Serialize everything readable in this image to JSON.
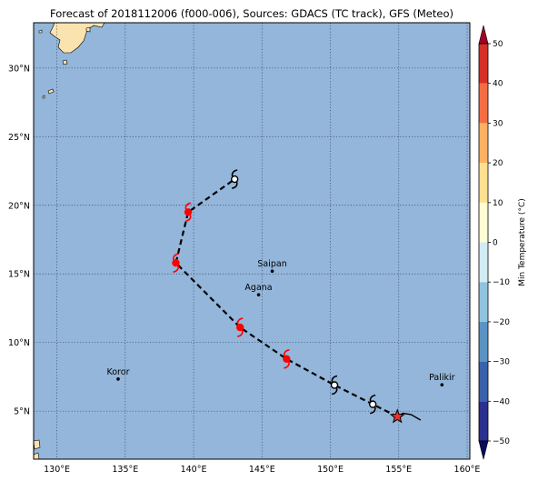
{
  "title": "Forecast of 2018112006 (f000-006), Sources: GDACS (TC track), GFS (Meteo)",
  "map": {
    "lon_range": [
      128.3,
      160.2
    ],
    "lat_range": [
      1.5,
      33.3
    ],
    "ocean_color": "#93b6da",
    "land_color": "#fbe3b0",
    "grid_style": "dotted",
    "lon_ticks": [
      {
        "value": 130,
        "label": "130°E"
      },
      {
        "value": 135,
        "label": "135°E"
      },
      {
        "value": 140,
        "label": "140°E"
      },
      {
        "value": 145,
        "label": "145°E"
      },
      {
        "value": 150,
        "label": "150°E"
      },
      {
        "value": 155,
        "label": "155°E"
      },
      {
        "value": 160,
        "label": "160°E"
      }
    ],
    "lat_ticks": [
      {
        "value": 5,
        "label": "5°N"
      },
      {
        "value": 10,
        "label": "10°N"
      },
      {
        "value": 15,
        "label": "15°N"
      },
      {
        "value": 20,
        "label": "20°N"
      },
      {
        "value": 25,
        "label": "25°N"
      },
      {
        "value": 30,
        "label": "30°N"
      }
    ]
  },
  "cities": [
    {
      "name": "Saipan",
      "lon": 145.75,
      "lat": 15.2
    },
    {
      "name": "Agana",
      "lon": 144.75,
      "lat": 13.48
    },
    {
      "name": "Koror",
      "lon": 134.48,
      "lat": 7.34
    },
    {
      "name": "Palikir",
      "lon": 158.16,
      "lat": 6.92
    }
  ],
  "track": {
    "observed": [
      {
        "lon": 156.6,
        "lat": 4.35
      },
      {
        "lon": 155.9,
        "lat": 4.75
      },
      {
        "lon": 155.3,
        "lat": 4.85
      },
      {
        "lon": 154.9,
        "lat": 4.6
      }
    ],
    "forecast": [
      {
        "lon": 154.9,
        "lat": 4.6
      },
      {
        "lon": 153.1,
        "lat": 5.5
      },
      {
        "lon": 150.3,
        "lat": 6.9
      },
      {
        "lon": 146.8,
        "lat": 8.8
      },
      {
        "lon": 143.4,
        "lat": 11.1
      },
      {
        "lon": 138.7,
        "lat": 15.8
      },
      {
        "lon": 139.6,
        "lat": 19.5
      },
      {
        "lon": 143.0,
        "lat": 21.9
      }
    ],
    "current_position": {
      "lon": 154.9,
      "lat": 4.6
    },
    "symbols": [
      {
        "lon": 153.1,
        "lat": 5.5,
        "category": "storm",
        "color": "#000000"
      },
      {
        "lon": 150.3,
        "lat": 6.9,
        "category": "storm",
        "color": "#000000"
      },
      {
        "lon": 146.8,
        "lat": 8.8,
        "category": "typhoon",
        "color": "#ff0000"
      },
      {
        "lon": 143.4,
        "lat": 11.1,
        "category": "typhoon",
        "color": "#ff0000"
      },
      {
        "lon": 138.7,
        "lat": 15.8,
        "category": "typhoon",
        "color": "#ff0000"
      },
      {
        "lon": 139.6,
        "lat": 19.5,
        "category": "typhoon",
        "color": "#ff0000"
      },
      {
        "lon": 143.0,
        "lat": 21.9,
        "category": "storm",
        "color": "#000000"
      }
    ]
  },
  "colorbar": {
    "label": "Min Temperature (°C)",
    "min": -50,
    "max": 50,
    "ticks": [
      {
        "value": 50,
        "label": "50"
      },
      {
        "value": 40,
        "label": "40"
      },
      {
        "value": 30,
        "label": "30"
      },
      {
        "value": 20,
        "label": "20"
      },
      {
        "value": 10,
        "label": "10"
      },
      {
        "value": 0,
        "label": "0"
      },
      {
        "value": -10,
        "label": "−10"
      },
      {
        "value": -20,
        "label": "−20"
      },
      {
        "value": -30,
        "label": "−30"
      },
      {
        "value": -40,
        "label": "−40"
      },
      {
        "value": -50,
        "label": "−50"
      }
    ],
    "colors": [
      "#2b2f8f",
      "#3a62ac",
      "#5b94c4",
      "#90c3dd",
      "#d2ecf4",
      "#fffbd2",
      "#fee090",
      "#fdb163",
      "#f46d43",
      "#d73027"
    ],
    "extend_low_color": "#0b0b5c",
    "extend_high_color": "#a50026"
  }
}
